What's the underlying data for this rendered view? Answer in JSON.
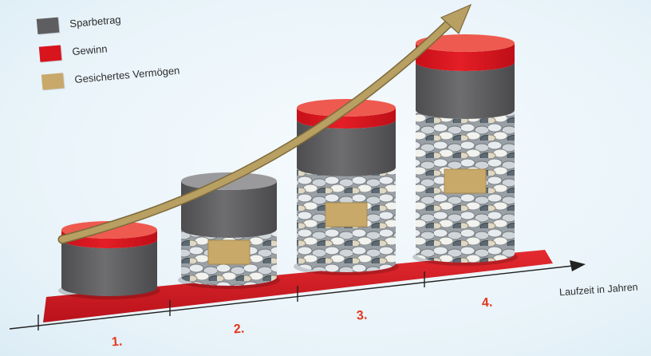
{
  "legend": [
    {
      "label": "Sparbetrag",
      "color": "#5e5e60"
    },
    {
      "label": "Gewinn",
      "color": "#d8141d"
    },
    {
      "label": "Gesichertes Vermögen",
      "color": "#c8a96a"
    }
  ],
  "axis": {
    "xlabel": "Laufzeit in Jahren"
  },
  "chart_data": {
    "type": "bar",
    "categories": [
      "1.",
      "2.",
      "3.",
      "4."
    ],
    "series": [
      {
        "name": "Gesichertes Vermögen",
        "values": [
          0,
          1,
          2,
          3
        ]
      },
      {
        "name": "Sparbetrag",
        "values": [
          1,
          1,
          1,
          1
        ]
      },
      {
        "name": "Gewinn",
        "values": [
          0.2,
          0,
          0.25,
          0.4
        ]
      }
    ],
    "stacked": true,
    "trend_arrow": true,
    "colors": {
      "sparbetrag": "#5e5e60",
      "gewinn": "#d8141d",
      "gesichert": "#c8a96a",
      "coins": "#b9bdc1",
      "timeline": "#d41922",
      "arrow": "#b39a5e"
    }
  }
}
